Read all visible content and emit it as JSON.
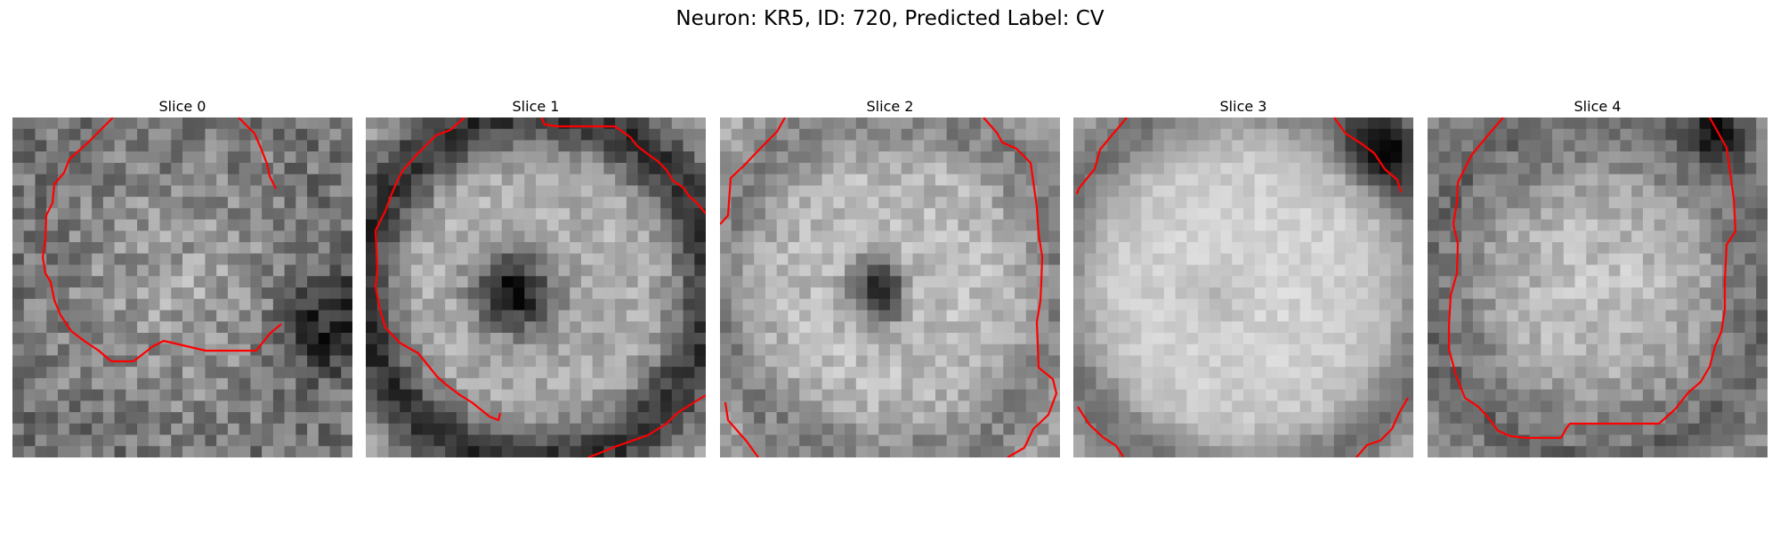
{
  "figure": {
    "title": "Neuron: KR5, ID: 720, Predicted Label: CV",
    "colormap": "gray",
    "contour_color": "#ff0000"
  },
  "panels": [
    {
      "title": "Slice 0"
    },
    {
      "title": "Slice 1"
    },
    {
      "title": "Slice 2"
    },
    {
      "title": "Slice 3"
    },
    {
      "title": "Slice 4"
    }
  ]
}
